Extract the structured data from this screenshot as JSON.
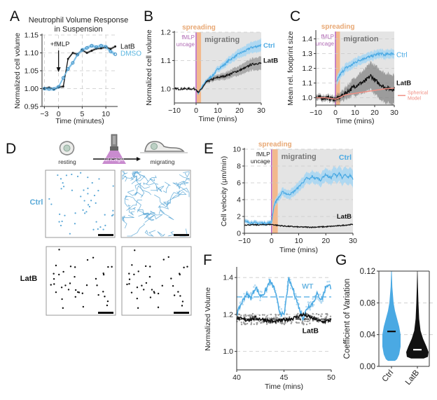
{
  "colors": {
    "ctrl": "#4aa9e3",
    "ctrl_light": "#a9d6f2",
    "latb": "#111111",
    "latb_band": "#8c8c8c",
    "spreading": "#f2b98d",
    "spreading_text": "#e8a874",
    "uncage_line": "#b35ab8",
    "uncage_text": "#b06ab4",
    "migrating_bg": "#e4e4e4",
    "migrating_text": "#777777",
    "spherical": "#f08f84",
    "dmso_text": "#58b5e0"
  },
  "panels": {
    "A": {
      "label": "A"
    },
    "B": {
      "label": "B"
    },
    "C": {
      "label": "C"
    },
    "D": {
      "label": "D"
    },
    "E": {
      "label": "E"
    },
    "F": {
      "label": "F"
    },
    "G": {
      "label": "G"
    }
  },
  "schematic": {
    "resting": "resting",
    "uncage": "uncage",
    "migrating": "migrating",
    "row_labels": [
      "Ctrl",
      "LatB"
    ]
  },
  "chart_data": [
    {
      "id": "A",
      "type": "line",
      "title": "Neutrophil Volume Response in Suspension",
      "title_lines": [
        "Neutrophil Volume Response",
        "in Suspension"
      ],
      "xlabel": "Time (minutes)",
      "ylabel": "Normalized cell volume",
      "xlim": [
        -3.5,
        12.5
      ],
      "ylim": [
        0.95,
        1.15
      ],
      "xticks": [
        -3,
        0,
        5,
        10
      ],
      "yticks": [
        0.95,
        1.0,
        1.05,
        1.1,
        1.15
      ],
      "ytick_labels": [
        "0.95",
        "1.00",
        "1.05",
        "1.10",
        "1.15"
      ],
      "grid": true,
      "annotations": [
        {
          "text": "+fMLP",
          "x": 0,
          "arrow": true
        }
      ],
      "series": [
        {
          "name": "LatB",
          "x": [
            -3,
            -2,
            -1,
            0,
            1,
            2,
            3,
            4,
            5,
            6,
            7,
            8,
            9,
            10,
            11,
            12
          ],
          "values": [
            1.0,
            1.003,
            0.998,
            1.004,
            1.006,
            1.083,
            1.1,
            1.096,
            1.108,
            1.1,
            1.106,
            1.112,
            1.113,
            1.116,
            1.111,
            1.118
          ]
        },
        {
          "name": "DMSO",
          "x": [
            -3,
            -2,
            -1,
            0,
            1,
            2,
            3,
            4,
            5,
            6,
            7,
            8,
            9,
            10,
            11,
            12
          ],
          "values": [
            1.0,
            0.999,
            0.999,
            1.005,
            1.03,
            1.055,
            1.072,
            1.095,
            1.108,
            1.114,
            1.12,
            1.116,
            1.12,
            1.117,
            1.104,
            1.096
          ]
        }
      ]
    },
    {
      "id": "B",
      "type": "line",
      "title": "",
      "xlabel": "Time (mins)",
      "ylabel": "Normalized cell volume",
      "xlim": [
        -10,
        30
      ],
      "ylim": [
        0.95,
        1.2
      ],
      "xticks": [
        -10,
        0,
        10,
        20,
        30
      ],
      "yticks": [
        1.0,
        1.1,
        1.2
      ],
      "ytick_labels": [
        "1.0",
        "1.1",
        "1.2"
      ],
      "grid": true,
      "regions": {
        "uncage_at": 0,
        "spreading": [
          0.3,
          2.3
        ],
        "migrating": [
          2.3,
          30
        ]
      },
      "region_labels": {
        "spreading": "spreading",
        "uncage": [
          "fMLP",
          "uncage"
        ],
        "migrating": "migrating"
      },
      "series": [
        {
          "name": "Ctrl",
          "x": [
            -10,
            -5,
            0,
            1,
            3,
            5,
            8,
            10,
            13,
            15,
            18,
            20,
            23,
            25,
            28,
            30
          ],
          "values": [
            1.0,
            1.0,
            1.0,
            0.985,
            1.01,
            1.03,
            1.05,
            1.07,
            1.085,
            1.1,
            1.115,
            1.125,
            1.135,
            1.145,
            1.15,
            1.155
          ]
        },
        {
          "name": "LatB",
          "x": [
            -10,
            -5,
            0,
            1,
            3,
            5,
            8,
            10,
            13,
            15,
            18,
            20,
            23,
            25,
            28,
            30
          ],
          "values": [
            1.0,
            1.0,
            1.0,
            0.985,
            1.005,
            1.025,
            1.035,
            1.04,
            1.045,
            1.05,
            1.06,
            1.065,
            1.075,
            1.085,
            1.09,
            1.09
          ]
        }
      ]
    },
    {
      "id": "C",
      "type": "line",
      "title": "",
      "xlabel": "Time (mins)",
      "ylabel": "Mean rel. footprint size",
      "xlim": [
        -10,
        30
      ],
      "ylim": [
        0.95,
        1.45
      ],
      "xticks": [
        -10,
        0,
        10,
        20,
        30
      ],
      "yticks": [
        1.0,
        1.1,
        1.2,
        1.3,
        1.4
      ],
      "ytick_labels": [
        "1.0",
        "1.1",
        "1.2",
        "1.3",
        "1.4"
      ],
      "grid": true,
      "regions": {
        "uncage_at": 0,
        "spreading": [
          0.3,
          2.3
        ],
        "migrating": [
          2.3,
          30
        ]
      },
      "region_labels": {
        "spreading": "spreading",
        "uncage": [
          "fMLP",
          "uncage"
        ],
        "migrating": "migration"
      },
      "series": [
        {
          "name": "Ctrl",
          "x": [
            -10,
            -5,
            0,
            0.5,
            2,
            5,
            8,
            10,
            13,
            15,
            18,
            20,
            23,
            25,
            28,
            30
          ],
          "values": [
            1.0,
            1.0,
            1.0,
            1.1,
            1.15,
            1.2,
            1.22,
            1.24,
            1.26,
            1.27,
            1.28,
            1.29,
            1.3,
            1.29,
            1.3,
            1.3
          ]
        },
        {
          "name": "LatB",
          "x": [
            -10,
            -5,
            0,
            2,
            5,
            8,
            10,
            13,
            15,
            18,
            20,
            22,
            25,
            28,
            30
          ],
          "values": [
            1.0,
            1.0,
            0.99,
            1.0,
            1.03,
            1.06,
            1.08,
            1.1,
            1.11,
            1.15,
            1.12,
            1.1,
            1.07,
            1.06,
            1.06
          ]
        },
        {
          "name": "Spherical Model",
          "x": [
            -10,
            -5,
            0,
            2,
            5,
            10,
            15,
            20,
            25,
            30
          ],
          "values": [
            1.0,
            1.0,
            0.99,
            1.0,
            1.02,
            1.03,
            1.04,
            1.05,
            1.06,
            1.065
          ]
        }
      ],
      "legend": {
        "entries": [
          "Spherical",
          "Model"
        ],
        "placement": "bottom-right"
      }
    },
    {
      "id": "E",
      "type": "line",
      "title": "",
      "xlabel": "Time (mins)",
      "ylabel": "Cell velocity (μm/min)",
      "xlim": [
        -10,
        30
      ],
      "ylim": [
        0,
        10
      ],
      "xticks": [
        -10,
        0,
        10,
        20,
        30
      ],
      "yticks": [
        0,
        2,
        4,
        6,
        8,
        10
      ],
      "ytick_labels": [
        "0",
        "2",
        "4",
        "6",
        "8",
        "10"
      ],
      "grid": true,
      "regions": {
        "uncage_at": 0,
        "spreading": [
          0.3,
          2.3
        ],
        "migrating": [
          2.3,
          30
        ]
      },
      "region_labels": {
        "spreading": "spreading",
        "uncage": [
          "fMLP",
          "uncage"
        ],
        "migrating": "migrating"
      },
      "series": [
        {
          "name": "Ctrl",
          "x": [
            -10,
            -8,
            -5,
            -2,
            0,
            0.5,
            1,
            2,
            3,
            4,
            5,
            6,
            7,
            8,
            9,
            10,
            11,
            12,
            13,
            14,
            15,
            16,
            17,
            18,
            19,
            20,
            21,
            22,
            23,
            24,
            25,
            26,
            27,
            28,
            29,
            30
          ],
          "values": [
            1.4,
            1.3,
            1.2,
            1.2,
            1.3,
            2.5,
            3.4,
            4.0,
            4.4,
            4.9,
            4.8,
            4.6,
            4.7,
            4.9,
            5.2,
            5.5,
            5.9,
            6.2,
            6.6,
            6.4,
            6.8,
            6.5,
            6.6,
            6.3,
            6.7,
            7.0,
            6.7,
            6.6,
            7.1,
            6.8,
            7.2,
            6.5,
            7.0,
            6.6,
            6.9,
            6.5
          ]
        },
        {
          "name": "LatB",
          "x": [
            -10,
            -5,
            0,
            2,
            5,
            10,
            15,
            20,
            25,
            28,
            30
          ],
          "values": [
            1.0,
            1.0,
            1.05,
            0.95,
            0.85,
            0.75,
            0.72,
            0.78,
            0.9,
            1.0,
            1.05
          ]
        }
      ]
    },
    {
      "id": "F",
      "type": "line",
      "title": "",
      "xlabel": "Time (mins)",
      "ylabel": "Normalized Volume",
      "xlim": [
        40,
        50
      ],
      "ylim": [
        0.9,
        1.45
      ],
      "xticks": [
        40,
        45,
        50
      ],
      "yticks": [
        1.0,
        1.2,
        1.4
      ],
      "ytick_labels": [
        "1.0",
        "1.2",
        "1.4"
      ],
      "grid": true,
      "series": [
        {
          "name": "WT",
          "x": [
            40,
            40.5,
            41,
            41.5,
            42,
            42.5,
            43,
            43.5,
            44,
            44.5,
            45,
            45.5,
            46,
            46.5,
            47,
            47.5,
            48,
            48.5,
            49,
            49.5,
            50
          ],
          "values": [
            1.2,
            1.26,
            1.31,
            1.29,
            1.35,
            1.3,
            1.32,
            1.38,
            1.34,
            1.22,
            1.19,
            1.39,
            1.33,
            1.25,
            1.18,
            1.24,
            1.26,
            1.31,
            1.28,
            1.36,
            1.35
          ],
          "mean": 1.295
        },
        {
          "name": "LatB",
          "x": [
            40,
            41,
            42,
            43,
            44,
            45,
            46,
            47,
            48,
            49,
            50
          ],
          "values": [
            1.18,
            1.17,
            1.18,
            1.17,
            1.16,
            1.17,
            1.18,
            1.2,
            1.18,
            1.16,
            1.17
          ],
          "mean": 1.175
        }
      ]
    },
    {
      "id": "G",
      "type": "violin",
      "title": "",
      "xlabel": "",
      "ylabel": "Coefficient of Variation",
      "ylim": [
        0,
        0.12
      ],
      "yticks": [
        0.0,
        0.04,
        0.08,
        0.12
      ],
      "ytick_labels": [
        "0.00",
        "0.04",
        "0.08",
        "0.12"
      ],
      "categories": [
        "Ctrl",
        "LatB"
      ],
      "grid": true,
      "series": [
        {
          "name": "Ctrl",
          "median": 0.044,
          "min": 0.007,
          "max": 0.12
        },
        {
          "name": "LatB",
          "median": 0.021,
          "min": 0.01,
          "max": 0.12
        }
      ]
    }
  ]
}
